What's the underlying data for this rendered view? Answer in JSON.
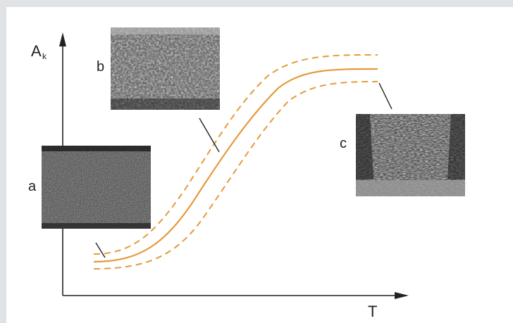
{
  "axes": {
    "y_label": "A",
    "y_label_sub": "k",
    "x_label": "T"
  },
  "photos": [
    {
      "id": "a",
      "label": "a"
    },
    {
      "id": "b",
      "label": "b"
    },
    {
      "id": "c",
      "label": "c"
    }
  ],
  "colors": {
    "curve": "#e59a3b",
    "axis": "#222222",
    "background": "#ffffff",
    "border": "#dfe3e6"
  }
}
